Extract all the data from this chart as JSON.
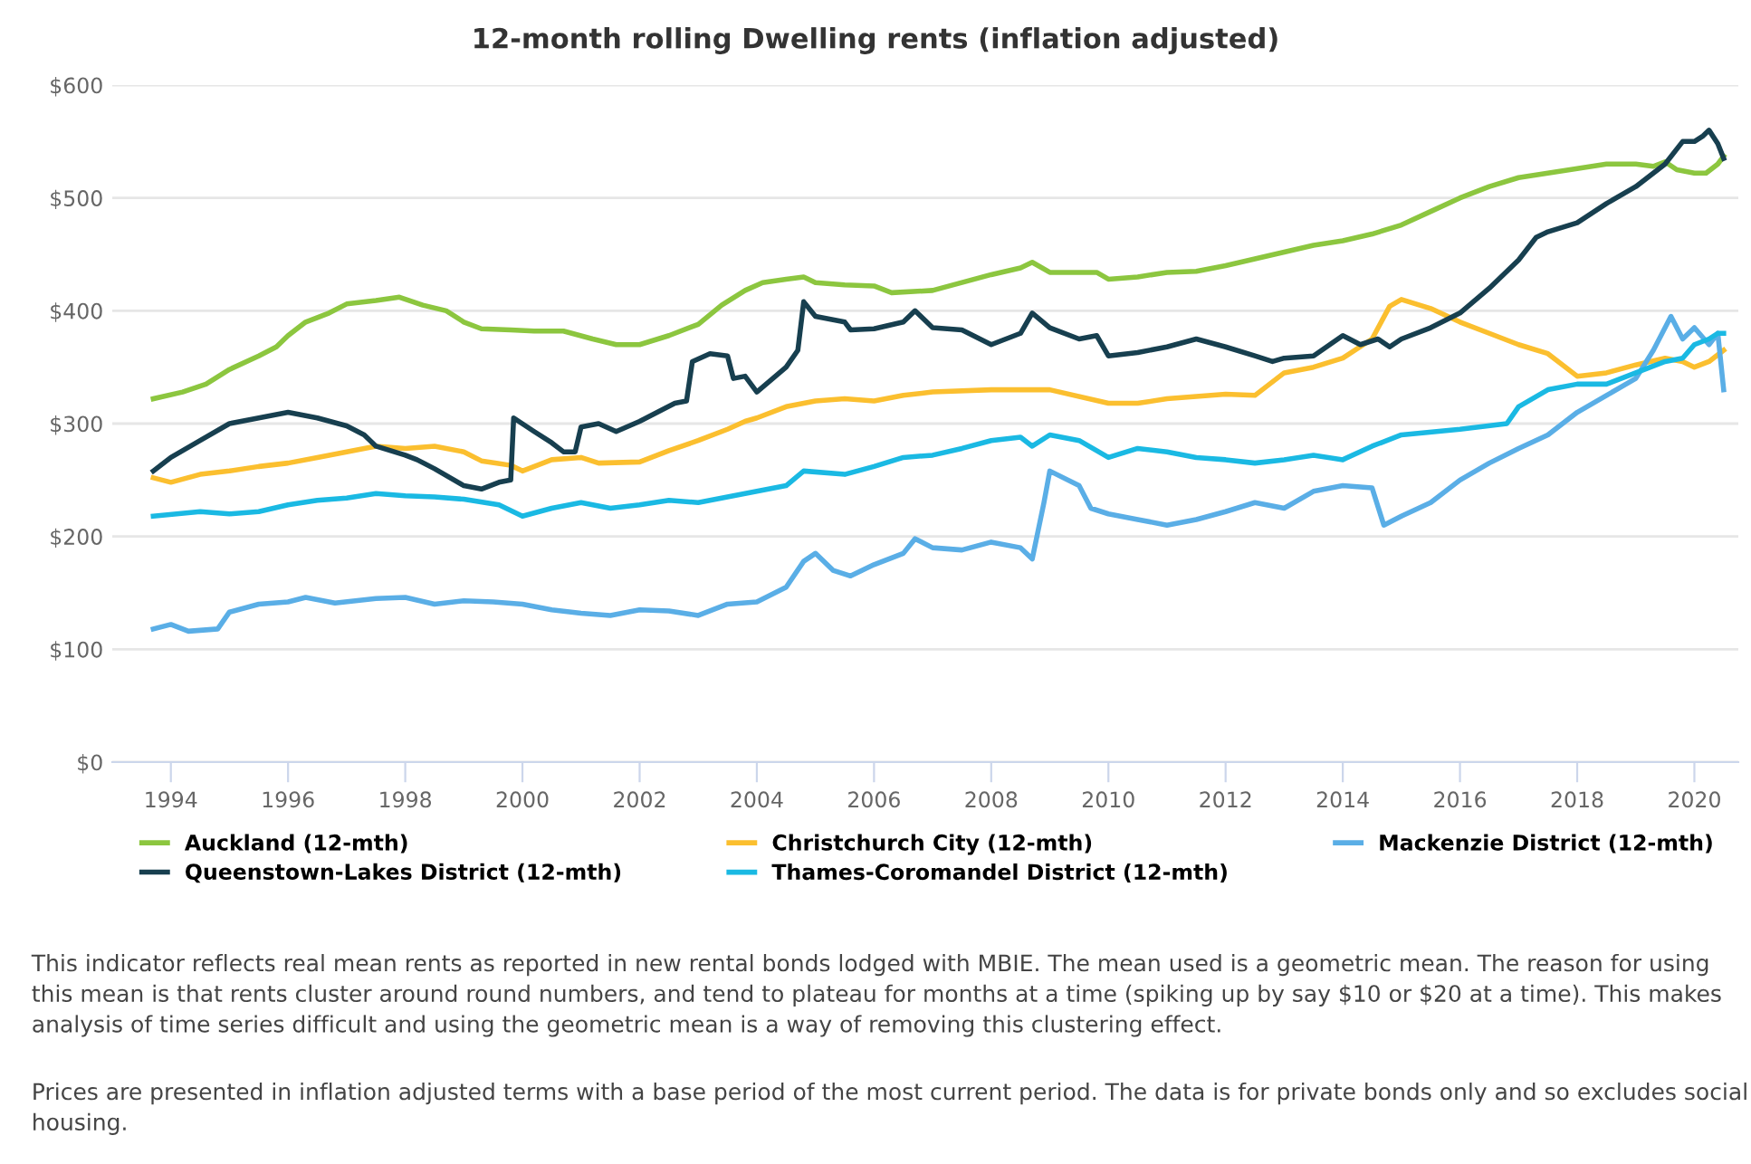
{
  "chart_data": {
    "type": "line",
    "title": "12-month rolling Dwelling rents (inflation adjusted)",
    "xlim": [
      1993.0,
      2020.75
    ],
    "xticks": [
      1994,
      1996,
      1998,
      2000,
      2002,
      2004,
      2006,
      2008,
      2010,
      2012,
      2014,
      2016,
      2018,
      2020
    ],
    "ylim": [
      0,
      600
    ],
    "yticks": [
      {
        "value": 0,
        "label": "$0"
      },
      {
        "value": 100,
        "label": "$100"
      },
      {
        "value": 200,
        "label": "$200"
      },
      {
        "value": 300,
        "label": "$300"
      },
      {
        "value": 400,
        "label": "$400"
      },
      {
        "value": 500,
        "label": "$500"
      },
      {
        "value": 600,
        "label": "$600"
      }
    ],
    "grid": "y",
    "legend": "bottom",
    "marker": "none",
    "line_style": "solid",
    "series": [
      {
        "name": "Auckland (12-mth)",
        "color": "#8cc63f",
        "x": [
          1993.7,
          1994.2,
          1994.6,
          1995.0,
          1995.5,
          1995.8,
          1996.0,
          1996.3,
          1996.7,
          1997.0,
          1997.5,
          1997.9,
          1998.3,
          1998.7,
          1999.0,
          1999.3,
          1999.8,
          2000.2,
          2000.7,
          2001.2,
          2001.6,
          2002.0,
          2002.5,
          2003.0,
          2003.4,
          2003.8,
          2004.1,
          2004.5,
          2004.8,
          2005.0,
          2005.5,
          2006.0,
          2006.3,
          2007.0,
          2007.5,
          2008.0,
          2008.5,
          2008.7,
          2009.0,
          2009.5,
          2009.8,
          2010.0,
          2010.5,
          2011.0,
          2011.5,
          2012.0,
          2012.5,
          2013.0,
          2013.5,
          2014.0,
          2014.5,
          2015.0,
          2015.5,
          2016.0,
          2016.5,
          2017.0,
          2017.5,
          2018.0,
          2018.5,
          2019.0,
          2019.3,
          2019.5,
          2019.7,
          2020.0,
          2020.2,
          2020.4,
          2020.5
        ],
        "values": [
          322,
          328,
          335,
          348,
          360,
          368,
          378,
          390,
          398,
          406,
          409,
          412,
          405,
          400,
          390,
          384,
          383,
          382,
          382,
          375,
          370,
          370,
          378,
          388,
          405,
          418,
          425,
          428,
          430,
          425,
          423,
          422,
          416,
          418,
          425,
          432,
          438,
          443,
          434,
          434,
          434,
          428,
          430,
          434,
          435,
          440,
          446,
          452,
          458,
          462,
          468,
          476,
          488,
          500,
          510,
          518,
          522,
          526,
          530,
          530,
          528,
          532,
          525,
          522,
          522,
          530,
          537
        ]
      },
      {
        "name": "Christchurch City (12-mth)",
        "color": "#fbbf2f",
        "x": [
          1993.7,
          1994.0,
          1994.5,
          1995.0,
          1995.5,
          1996.0,
          1996.5,
          1997.0,
          1997.5,
          1998.0,
          1998.5,
          1999.0,
          1999.3,
          1999.8,
          2000.0,
          2000.5,
          2001.0,
          2001.3,
          2002.0,
          2002.5,
          2003.0,
          2003.5,
          2003.8,
          2004.0,
          2004.5,
          2005.0,
          2005.5,
          2006.0,
          2006.5,
          2007.0,
          2008.0,
          2009.0,
          2010.0,
          2010.5,
          2011.0,
          2012.0,
          2012.5,
          2013.0,
          2013.5,
          2014.0,
          2014.5,
          2014.8,
          2015.0,
          2015.5,
          2016.0,
          2016.5,
          2017.0,
          2017.5,
          2018.0,
          2018.5,
          2019.0,
          2019.5,
          2019.8,
          2020.0,
          2020.25,
          2020.5
        ],
        "values": [
          252,
          248,
          255,
          258,
          262,
          265,
          270,
          275,
          280,
          278,
          280,
          275,
          267,
          263,
          258,
          268,
          270,
          265,
          266,
          276,
          285,
          295,
          302,
          305,
          315,
          320,
          322,
          320,
          325,
          328,
          330,
          330,
          318,
          318,
          322,
          326,
          325,
          345,
          350,
          358,
          375,
          404,
          410,
          402,
          390,
          380,
          370,
          362,
          342,
          345,
          352,
          358,
          355,
          350,
          355,
          365
        ]
      },
      {
        "name": "Mackenzie District (12-mth)",
        "color": "#5aaee6",
        "x": [
          1993.7,
          1994.0,
          1994.3,
          1994.8,
          1995.0,
          1995.5,
          1996.0,
          1996.3,
          1996.8,
          1997.5,
          1998.0,
          1998.5,
          1999.0,
          1999.5,
          2000.0,
          2000.5,
          2001.0,
          2001.5,
          2002.0,
          2002.5,
          2003.0,
          2003.5,
          2004.0,
          2004.5,
          2004.8,
          2005.0,
          2005.3,
          2005.6,
          2006.0,
          2006.5,
          2006.7,
          2007.0,
          2007.5,
          2008.0,
          2008.5,
          2008.7,
          2008.9,
          2009.0,
          2009.5,
          2009.7,
          2010.0,
          2010.5,
          2011.0,
          2011.5,
          2012.0,
          2012.5,
          2013.0,
          2013.5,
          2014.0,
          2014.5,
          2014.7,
          2015.0,
          2015.5,
          2016.0,
          2016.5,
          2017.0,
          2017.5,
          2018.0,
          2018.5,
          2019.0,
          2019.3,
          2019.6,
          2019.8,
          2020.0,
          2020.25,
          2020.4,
          2020.5
        ],
        "values": [
          118,
          122,
          116,
          118,
          133,
          140,
          142,
          146,
          141,
          145,
          146,
          140,
          143,
          142,
          140,
          135,
          132,
          130,
          135,
          134,
          130,
          140,
          142,
          155,
          178,
          185,
          170,
          165,
          175,
          185,
          198,
          190,
          188,
          195,
          190,
          180,
          230,
          258,
          245,
          225,
          220,
          215,
          210,
          215,
          222,
          230,
          225,
          240,
          245,
          243,
          210,
          218,
          230,
          250,
          265,
          278,
          290,
          310,
          325,
          340,
          365,
          395,
          375,
          385,
          370,
          380,
          330
        ]
      },
      {
        "name": "Queenstown-Lakes District (12-mth)",
        "color": "#173f4f",
        "x": [
          1993.7,
          1994.0,
          1994.5,
          1995.0,
          1995.5,
          1996.0,
          1996.5,
          1997.0,
          1997.3,
          1997.5,
          1998.0,
          1998.2,
          1998.5,
          1999.0,
          1999.3,
          1999.6,
          1999.8,
          1999.85,
          2000.2,
          2000.5,
          2000.7,
          2000.9,
          2001.0,
          2001.3,
          2001.6,
          2002.0,
          2002.3,
          2002.6,
          2002.8,
          2002.9,
          2003.2,
          2003.5,
          2003.6,
          2003.8,
          2004.0,
          2004.5,
          2004.7,
          2004.8,
          2005.0,
          2005.5,
          2005.6,
          2006.0,
          2006.5,
          2006.7,
          2007.0,
          2007.5,
          2008.0,
          2008.5,
          2008.7,
          2009.0,
          2009.5,
          2009.8,
          2010.0,
          2010.5,
          2011.0,
          2011.5,
          2012.0,
          2012.5,
          2012.8,
          2013.0,
          2013.5,
          2014.0,
          2014.3,
          2014.6,
          2014.8,
          2015.0,
          2015.5,
          2016.0,
          2016.5,
          2017.0,
          2017.3,
          2017.5,
          2018.0,
          2018.5,
          2019.0,
          2019.5,
          2019.8,
          2020.0,
          2020.15,
          2020.25,
          2020.4,
          2020.5
        ],
        "values": [
          258,
          270,
          285,
          300,
          305,
          310,
          305,
          298,
          290,
          280,
          272,
          268,
          260,
          245,
          242,
          248,
          250,
          305,
          293,
          283,
          275,
          275,
          297,
          300,
          293,
          302,
          310,
          318,
          320,
          355,
          362,
          360,
          340,
          342,
          328,
          350,
          365,
          408,
          395,
          390,
          383,
          384,
          390,
          400,
          385,
          383,
          370,
          380,
          398,
          385,
          375,
          378,
          360,
          363,
          368,
          375,
          368,
          360,
          355,
          358,
          360,
          378,
          370,
          375,
          368,
          375,
          385,
          398,
          420,
          445,
          465,
          470,
          478,
          495,
          510,
          530,
          550,
          550,
          555,
          560,
          548,
          535
        ]
      },
      {
        "name": "Thames-Coromandel District (12-mth)",
        "color": "#1ab9e3",
        "x": [
          1993.7,
          1994.5,
          1995.0,
          1995.5,
          1996.0,
          1996.5,
          1997.0,
          1997.5,
          1998.0,
          1998.5,
          1999.0,
          1999.6,
          2000.0,
          2000.5,
          2001.0,
          2001.5,
          2002.0,
          2002.5,
          2003.0,
          2003.5,
          2004.0,
          2004.5,
          2004.8,
          2005.5,
          2006.0,
          2006.5,
          2007.0,
          2007.5,
          2008.0,
          2008.5,
          2008.7,
          2009.0,
          2009.5,
          2010.0,
          2010.5,
          2011.0,
          2011.5,
          2012.0,
          2012.5,
          2013.0,
          2013.5,
          2014.0,
          2014.5,
          2015.0,
          2016.0,
          2016.8,
          2017.0,
          2017.5,
          2018.0,
          2018.5,
          2019.0,
          2019.5,
          2019.8,
          2020.0,
          2020.25,
          2020.4,
          2020.5
        ],
        "values": [
          218,
          222,
          220,
          222,
          228,
          232,
          234,
          238,
          236,
          235,
          233,
          228,
          218,
          225,
          230,
          225,
          228,
          232,
          230,
          235,
          240,
          245,
          258,
          255,
          262,
          270,
          272,
          278,
          285,
          288,
          280,
          290,
          285,
          270,
          278,
          275,
          270,
          268,
          265,
          268,
          272,
          268,
          280,
          290,
          295,
          300,
          315,
          330,
          335,
          335,
          345,
          355,
          358,
          370,
          375,
          380,
          380
        ]
      }
    ],
    "annotations": [
      "This indicator reflects real mean rents as reported in new rental bonds lodged with MBIE. The mean used is a geometric mean. The reason for using this mean is that rents cluster around round numbers, and tend to plateau for months at a time (spiking up by say $10 or $20 at a time). This makes analysis of time series difficult and using the geometric mean is a way of removing this clustering effect.",
      "Prices are presented in inflation adjusted terms with a base period of the most current period. The data is for private bonds only and so excludes social housing."
    ]
  }
}
